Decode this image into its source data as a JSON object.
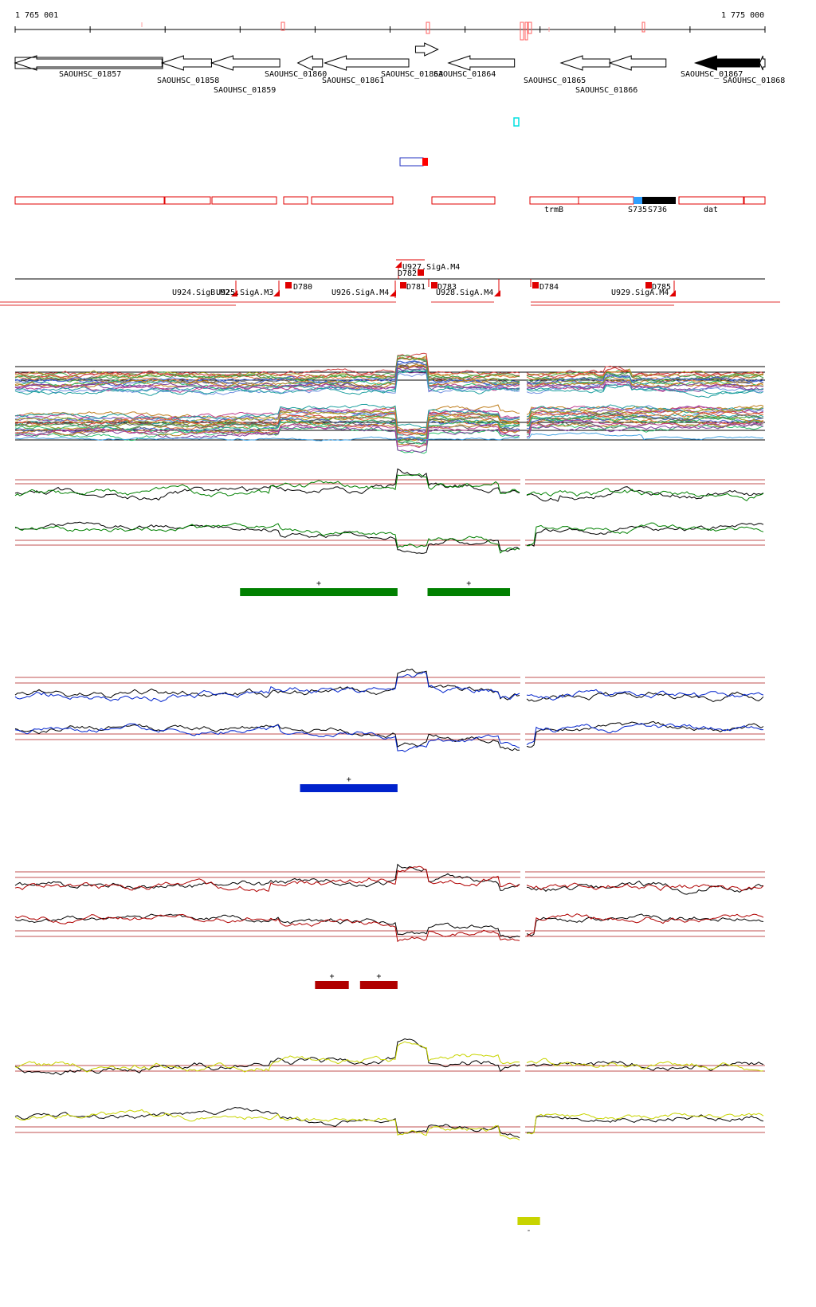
{
  "coords": {
    "start_label": "1 765 001",
    "end_label": "1 775 000",
    "start": 1765001,
    "end": 1775000
  },
  "genes": [
    {
      "name": "SAOUHSC_01857",
      "from": 1765001,
      "to": 1766960,
      "strand": "-",
      "filled": false
    },
    {
      "name": "SAOUHSC_01858",
      "from": 1766960,
      "to": 1767620,
      "strand": "-",
      "filled": false
    },
    {
      "name": "SAOUHSC_01859",
      "from": 1767620,
      "to": 1768530,
      "strand": "-",
      "filled": false
    },
    {
      "name": "SAOUHSC_01860",
      "from": 1768770,
      "to": 1769100,
      "strand": "-",
      "filled": false
    },
    {
      "name": "SAOUHSC_01861",
      "from": 1769130,
      "to": 1770250,
      "strand": "-",
      "filled": false
    },
    {
      "name": "SAOUHSC_01863",
      "from": 1770340,
      "to": 1770640,
      "strand": "+",
      "filled": false
    },
    {
      "name": "SAOUHSC_01864",
      "from": 1770780,
      "to": 1771660,
      "strand": "-",
      "filled": false
    },
    {
      "name": "SAOUHSC_01865",
      "from": 1772280,
      "to": 1772930,
      "strand": "-",
      "filled": false
    },
    {
      "name": "SAOUHSC_01866",
      "from": 1772930,
      "to": 1773680,
      "strand": "-",
      "filled": false
    },
    {
      "name": "SAOUHSC_01867",
      "from": 1774070,
      "to": 1774930,
      "strand": "-",
      "filled": true
    },
    {
      "name": "SAOUHSC_01868",
      "from": 1774930,
      "to": 1775000,
      "strand": "-",
      "filled": false
    }
  ],
  "annotations": [
    {
      "label": "trmB"
    },
    {
      "label": "S735"
    },
    {
      "label": "S736"
    },
    {
      "label": "dat"
    }
  ],
  "tss": [
    {
      "label": "U927.SigA.M4"
    },
    {
      "label": "D782"
    },
    {
      "label": "D780"
    },
    {
      "label": "D781"
    },
    {
      "label": "D783"
    },
    {
      "label": "D784"
    },
    {
      "label": "D785"
    },
    {
      "label": "U924.SigB.M2"
    },
    {
      "label": "U925.SigA.M3"
    },
    {
      "label": "U926.SigA.M4"
    },
    {
      "label": "U928.SigA.M4"
    },
    {
      "label": "U929.SigA.M4"
    }
  ],
  "tracks": [
    {
      "name": "green",
      "color": "#008000",
      "segments": [
        {
          "from": 1768000,
          "to": 1770100,
          "strand_label": "+"
        },
        {
          "from": 1770500,
          "to": 1771600,
          "strand_label": "+"
        }
      ]
    },
    {
      "name": "blue",
      "color": "#0022cc",
      "segments": [
        {
          "from": 1768800,
          "to": 1770100,
          "strand_label": "+"
        }
      ]
    },
    {
      "name": "red",
      "color": "#b00000",
      "segments": [
        {
          "from": 1769000,
          "to": 1769450,
          "strand_label": "+"
        },
        {
          "from": 1769600,
          "to": 1770100,
          "strand_label": "+"
        }
      ]
    },
    {
      "name": "yellow",
      "color": "#c8d400",
      "segments": [
        {
          "from": 1771700,
          "to": 1772000,
          "strand_label": "-"
        }
      ]
    }
  ]
}
